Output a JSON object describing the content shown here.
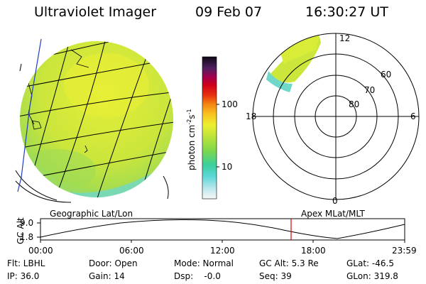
{
  "header": {
    "instrument": "Ultraviolet Imager",
    "date": "09 Feb 07",
    "time": "16:30:27 UT"
  },
  "colorbar": {
    "unit_label": "photon cm",
    "unit_exp1": "-2",
    "unit_mid": "s",
    "unit_exp2": "-1",
    "tick_100": "100",
    "tick_10": "10"
  },
  "polar": {
    "label_12": "12",
    "label_18": "18",
    "label_6": "6",
    "label_0": "0",
    "lat_60": "60",
    "lat_70": "70",
    "lat_80": "80"
  },
  "timeline": {
    "left_title": "Geographic Lat/Lon",
    "right_title": "Apex MLat/MLT",
    "axis_label": "GC Alt",
    "y_max": "9.0",
    "y_min": "1.8",
    "ticks": [
      "00:00",
      "06:00",
      "12:00",
      "18:00",
      "23:59"
    ]
  },
  "info": {
    "flt": "Flt: LBHL",
    "ip": "IP: 36.0",
    "door": "Door: Open",
    "gain": "Gain: 14",
    "mode": "Mode: Normal",
    "dsp": "Dsp:    -0.0",
    "gcalt": "GC Alt: 5.3 Re",
    "seq": "Seq: 39",
    "glat": "GLat: -46.5",
    "glon": "GLon: 319.8"
  },
  "colors": {
    "disk_main": "#cde83a",
    "disk_yellow": "#e8ee3a",
    "disk_green": "#a8df4e",
    "disk_cyan": "#5fd8d0",
    "marker": "#e00000"
  }
}
